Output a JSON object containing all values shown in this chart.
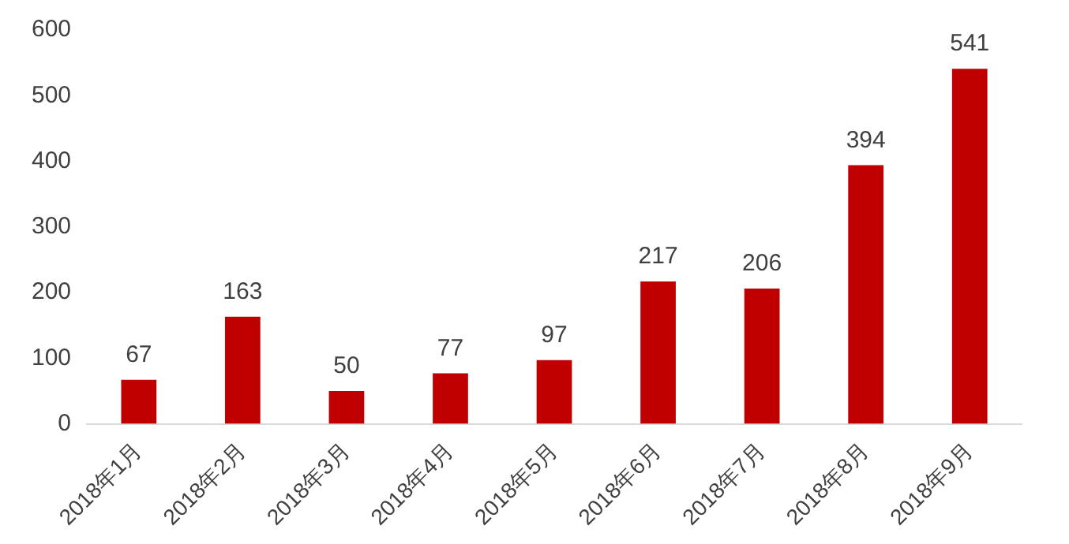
{
  "chart_data": {
    "type": "bar",
    "categories": [
      "2018年1月",
      "2018年2月",
      "2018年3月",
      "2018年4月",
      "2018年5月",
      "2018年6月",
      "2018年7月",
      "2018年8月",
      "2018年9月"
    ],
    "values": [
      67,
      163,
      50,
      77,
      97,
      217,
      206,
      394,
      541
    ],
    "color": "#c00000",
    "ylim": [
      0,
      600
    ],
    "yticks": [
      0,
      100,
      200,
      300,
      400,
      500,
      600
    ],
    "grid": false,
    "legend": false,
    "data_labels": true
  }
}
